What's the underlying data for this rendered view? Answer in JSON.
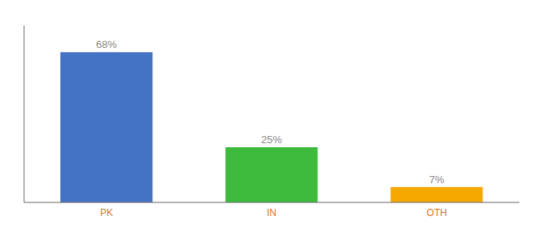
{
  "chart_data": {
    "type": "bar",
    "categories": [
      "PK",
      "IN",
      "OTH"
    ],
    "values": [
      68,
      25,
      7
    ],
    "value_labels": [
      "68%",
      "25%",
      "7%"
    ],
    "colors": [
      "#4472c4",
      "#3dbb3d",
      "#f5a800"
    ],
    "ylim": [
      0,
      80
    ],
    "grid": false,
    "data_labels": true,
    "tick_labels": "x"
  }
}
